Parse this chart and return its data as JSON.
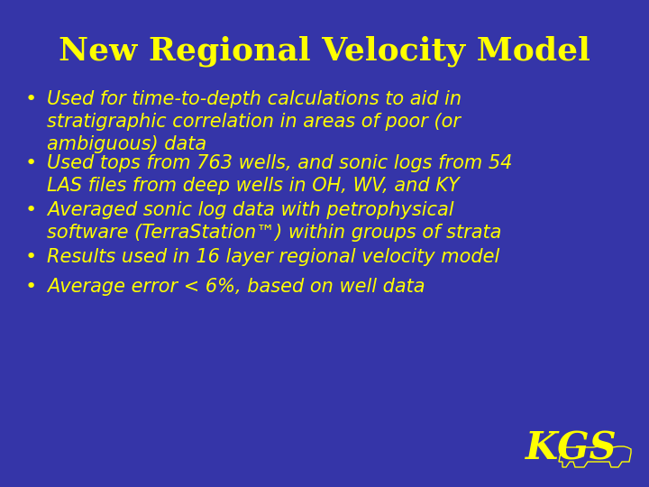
{
  "title": "New Regional Velocity Model",
  "title_color": "#FFFF00",
  "title_fontsize": 26,
  "background_color": "#3535A8",
  "bullet_color": "#FFFF00",
  "text_color": "#FFFF00",
  "text_fontsize": 15,
  "bullets": [
    "Used for time-to-depth calculations to aid in\nstratigraphic correlation in areas of poor (or\nambiguous) data",
    "Used tops from 763 wells, and sonic logs from 54\nLAS files from deep wells in OH, WV, and KY",
    "Averaged sonic log data with petrophysical\nsoftware (TerraStation™) within groups of strata",
    "Results used in 16 layer regional velocity model",
    "Average error < 6%, based on well data"
  ],
  "kgs_text": "KGS",
  "kgs_color": "#FFFF00",
  "kgs_fontsize": 30,
  "title_font": "Times New Roman",
  "body_font": "DejaVu Sans",
  "figwidth": 7.2,
  "figheight": 5.4,
  "dpi": 100
}
